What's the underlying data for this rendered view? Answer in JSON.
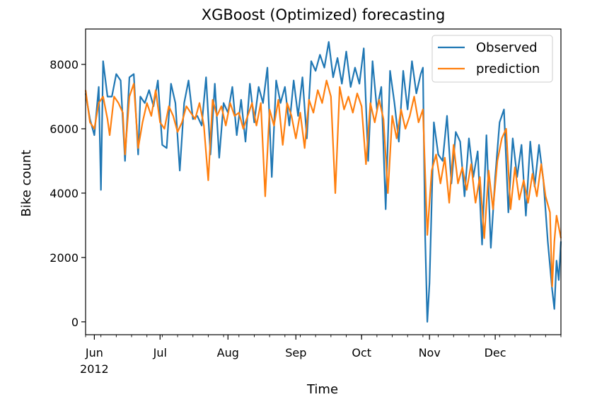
{
  "chart_data": {
    "type": "line",
    "title": "XGBoost (Optimized) forecasting",
    "xlabel": "Time",
    "ylabel": "Bike count",
    "x_start": "2012-05-28",
    "x_end": "2012-12-31",
    "ylim": [
      -400,
      9100
    ],
    "yticks": [
      0,
      2000,
      4000,
      6000,
      8000
    ],
    "xticks": [
      {
        "date": "2012-06-01",
        "label": "Jun",
        "sublabel": "2012"
      },
      {
        "date": "2012-07-01",
        "label": "Jul"
      },
      {
        "date": "2012-08-01",
        "label": "Aug"
      },
      {
        "date": "2012-09-01",
        "label": "Sep"
      },
      {
        "date": "2012-10-01",
        "label": "Oct"
      },
      {
        "date": "2012-11-01",
        "label": "Nov"
      },
      {
        "date": "2012-12-01",
        "label": "Dec"
      }
    ],
    "grid": false,
    "legend_position": "top-right",
    "series": [
      {
        "name": "Observed",
        "color": "#1f77b4",
        "keypoints": [
          [
            "2012-05-28",
            7100
          ],
          [
            "2012-05-30",
            6300
          ],
          [
            "2012-06-01",
            5800
          ],
          [
            "2012-06-03",
            7300
          ],
          [
            "2012-06-04",
            4100
          ],
          [
            "2012-06-05",
            8100
          ],
          [
            "2012-06-07",
            7000
          ],
          [
            "2012-06-09",
            7000
          ],
          [
            "2012-06-11",
            7700
          ],
          [
            "2012-06-13",
            7500
          ],
          [
            "2012-06-15",
            5000
          ],
          [
            "2012-06-17",
            7600
          ],
          [
            "2012-06-19",
            7700
          ],
          [
            "2012-06-21",
            5200
          ],
          [
            "2012-06-22",
            7000
          ],
          [
            "2012-06-24",
            6800
          ],
          [
            "2012-06-26",
            7200
          ],
          [
            "2012-06-28",
            6700
          ],
          [
            "2012-06-30",
            7500
          ],
          [
            "2012-07-02",
            5500
          ],
          [
            "2012-07-04",
            5400
          ],
          [
            "2012-07-06",
            7400
          ],
          [
            "2012-07-08",
            6800
          ],
          [
            "2012-07-10",
            4700
          ],
          [
            "2012-07-12",
            6800
          ],
          [
            "2012-07-14",
            7500
          ],
          [
            "2012-07-16",
            6300
          ],
          [
            "2012-07-18",
            6400
          ],
          [
            "2012-07-20",
            6100
          ],
          [
            "2012-07-22",
            7600
          ],
          [
            "2012-07-24",
            5200
          ],
          [
            "2012-07-26",
            7400
          ],
          [
            "2012-07-28",
            5100
          ],
          [
            "2012-07-30",
            6800
          ],
          [
            "2012-08-01",
            6500
          ],
          [
            "2012-08-03",
            7300
          ],
          [
            "2012-08-05",
            5800
          ],
          [
            "2012-08-07",
            6900
          ],
          [
            "2012-08-09",
            5600
          ],
          [
            "2012-08-11",
            7400
          ],
          [
            "2012-08-13",
            6200
          ],
          [
            "2012-08-15",
            7300
          ],
          [
            "2012-08-17",
            6800
          ],
          [
            "2012-08-19",
            7900
          ],
          [
            "2012-08-21",
            4500
          ],
          [
            "2012-08-23",
            7500
          ],
          [
            "2012-08-25",
            6800
          ],
          [
            "2012-08-27",
            7300
          ],
          [
            "2012-08-29",
            6100
          ],
          [
            "2012-08-31",
            7500
          ],
          [
            "2012-09-02",
            6400
          ],
          [
            "2012-09-04",
            7600
          ],
          [
            "2012-09-06",
            5700
          ],
          [
            "2012-09-08",
            8100
          ],
          [
            "2012-09-10",
            7800
          ],
          [
            "2012-09-12",
            8300
          ],
          [
            "2012-09-14",
            7900
          ],
          [
            "2012-09-16",
            8700
          ],
          [
            "2012-09-18",
            7600
          ],
          [
            "2012-09-20",
            8200
          ],
          [
            "2012-09-22",
            7400
          ],
          [
            "2012-09-24",
            8400
          ],
          [
            "2012-09-26",
            7300
          ],
          [
            "2012-09-28",
            7900
          ],
          [
            "2012-09-30",
            7400
          ],
          [
            "2012-10-02",
            8500
          ],
          [
            "2012-10-04",
            5000
          ],
          [
            "2012-10-06",
            8100
          ],
          [
            "2012-10-08",
            6600
          ],
          [
            "2012-10-10",
            7300
          ],
          [
            "2012-10-12",
            3500
          ],
          [
            "2012-10-14",
            7800
          ],
          [
            "2012-10-16",
            6800
          ],
          [
            "2012-10-18",
            5600
          ],
          [
            "2012-10-20",
            7800
          ],
          [
            "2012-10-22",
            6600
          ],
          [
            "2012-10-24",
            8100
          ],
          [
            "2012-10-26",
            7100
          ],
          [
            "2012-10-28",
            7700
          ],
          [
            "2012-10-29",
            7900
          ],
          [
            "2012-10-30",
            2700
          ],
          [
            "2012-10-31",
            0
          ],
          [
            "2012-11-01",
            1200
          ],
          [
            "2012-11-03",
            6200
          ],
          [
            "2012-11-05",
            5200
          ],
          [
            "2012-11-07",
            5000
          ],
          [
            "2012-11-09",
            6400
          ],
          [
            "2012-11-11",
            4300
          ],
          [
            "2012-11-13",
            5900
          ],
          [
            "2012-11-15",
            5600
          ],
          [
            "2012-11-17",
            3900
          ],
          [
            "2012-11-19",
            5700
          ],
          [
            "2012-11-21",
            4500
          ],
          [
            "2012-11-23",
            5300
          ],
          [
            "2012-11-25",
            2400
          ],
          [
            "2012-11-27",
            5800
          ],
          [
            "2012-11-29",
            2300
          ],
          [
            "2012-12-01",
            4500
          ],
          [
            "2012-12-03",
            6200
          ],
          [
            "2012-12-05",
            6600
          ],
          [
            "2012-12-07",
            3400
          ],
          [
            "2012-12-09",
            5700
          ],
          [
            "2012-12-11",
            4500
          ],
          [
            "2012-12-13",
            5500
          ],
          [
            "2012-12-15",
            3300
          ],
          [
            "2012-12-17",
            5600
          ],
          [
            "2012-12-19",
            4200
          ],
          [
            "2012-12-21",
            5500
          ],
          [
            "2012-12-23",
            4400
          ],
          [
            "2012-12-25",
            2500
          ],
          [
            "2012-12-27",
            1000
          ],
          [
            "2012-12-28",
            400
          ],
          [
            "2012-12-29",
            1900
          ],
          [
            "2012-12-30",
            1300
          ],
          [
            "2012-12-31",
            2500
          ]
        ]
      },
      {
        "name": "prediction",
        "color": "#ff7f0e",
        "keypoints": [
          [
            "2012-05-28",
            7200
          ],
          [
            "2012-05-30",
            6200
          ],
          [
            "2012-06-01",
            6000
          ],
          [
            "2012-06-03",
            6800
          ],
          [
            "2012-06-05",
            7000
          ],
          [
            "2012-06-07",
            6300
          ],
          [
            "2012-06-08",
            5800
          ],
          [
            "2012-06-10",
            7000
          ],
          [
            "2012-06-12",
            6800
          ],
          [
            "2012-06-14",
            6500
          ],
          [
            "2012-06-15",
            5200
          ],
          [
            "2012-06-17",
            7000
          ],
          [
            "2012-06-19",
            7400
          ],
          [
            "2012-06-21",
            5400
          ],
          [
            "2012-06-23",
            6200
          ],
          [
            "2012-06-25",
            6800
          ],
          [
            "2012-06-27",
            6400
          ],
          [
            "2012-06-29",
            7200
          ],
          [
            "2012-07-01",
            6200
          ],
          [
            "2012-07-03",
            6000
          ],
          [
            "2012-07-05",
            6700
          ],
          [
            "2012-07-07",
            6400
          ],
          [
            "2012-07-09",
            5900
          ],
          [
            "2012-07-11",
            6200
          ],
          [
            "2012-07-13",
            6700
          ],
          [
            "2012-07-15",
            6500
          ],
          [
            "2012-07-17",
            6300
          ],
          [
            "2012-07-19",
            6800
          ],
          [
            "2012-07-21",
            6100
          ],
          [
            "2012-07-23",
            4400
          ],
          [
            "2012-07-25",
            6900
          ],
          [
            "2012-07-27",
            6400
          ],
          [
            "2012-07-29",
            6700
          ],
          [
            "2012-07-31",
            6100
          ],
          [
            "2012-08-02",
            6800
          ],
          [
            "2012-08-04",
            6400
          ],
          [
            "2012-08-06",
            6500
          ],
          [
            "2012-08-08",
            6000
          ],
          [
            "2012-08-10",
            6400
          ],
          [
            "2012-08-12",
            6800
          ],
          [
            "2012-08-14",
            6100
          ],
          [
            "2012-08-16",
            6800
          ],
          [
            "2012-08-18",
            3900
          ],
          [
            "2012-08-20",
            6600
          ],
          [
            "2012-08-22",
            6100
          ],
          [
            "2012-08-24",
            6900
          ],
          [
            "2012-08-26",
            5500
          ],
          [
            "2012-08-28",
            6800
          ],
          [
            "2012-08-30",
            6400
          ],
          [
            "2012-09-01",
            5700
          ],
          [
            "2012-09-03",
            6500
          ],
          [
            "2012-09-05",
            5400
          ],
          [
            "2012-09-07",
            6900
          ],
          [
            "2012-09-09",
            6500
          ],
          [
            "2012-09-11",
            7200
          ],
          [
            "2012-09-13",
            6800
          ],
          [
            "2012-09-15",
            7500
          ],
          [
            "2012-09-17",
            7000
          ],
          [
            "2012-09-19",
            4000
          ],
          [
            "2012-09-21",
            7300
          ],
          [
            "2012-09-23",
            6600
          ],
          [
            "2012-09-25",
            7000
          ],
          [
            "2012-09-27",
            6500
          ],
          [
            "2012-09-29",
            7100
          ],
          [
            "2012-10-01",
            6700
          ],
          [
            "2012-10-03",
            4900
          ],
          [
            "2012-10-05",
            6800
          ],
          [
            "2012-10-07",
            6200
          ],
          [
            "2012-10-09",
            6900
          ],
          [
            "2012-10-11",
            6300
          ],
          [
            "2012-10-13",
            4000
          ],
          [
            "2012-10-15",
            6400
          ],
          [
            "2012-10-17",
            5700
          ],
          [
            "2012-10-19",
            6600
          ],
          [
            "2012-10-21",
            6000
          ],
          [
            "2012-10-23",
            6400
          ],
          [
            "2012-10-25",
            7000
          ],
          [
            "2012-10-27",
            6200
          ],
          [
            "2012-10-29",
            6600
          ],
          [
            "2012-10-31",
            2700
          ],
          [
            "2012-11-02",
            4700
          ],
          [
            "2012-11-04",
            5200
          ],
          [
            "2012-11-06",
            4300
          ],
          [
            "2012-11-08",
            5100
          ],
          [
            "2012-11-10",
            3700
          ],
          [
            "2012-11-12",
            5500
          ],
          [
            "2012-11-14",
            4300
          ],
          [
            "2012-11-16",
            4800
          ],
          [
            "2012-11-18",
            4100
          ],
          [
            "2012-11-20",
            4900
          ],
          [
            "2012-11-22",
            3700
          ],
          [
            "2012-11-24",
            4500
          ],
          [
            "2012-11-26",
            2600
          ],
          [
            "2012-11-28",
            4700
          ],
          [
            "2012-11-30",
            3500
          ],
          [
            "2012-12-02",
            5000
          ],
          [
            "2012-12-04",
            5700
          ],
          [
            "2012-12-06",
            6000
          ],
          [
            "2012-12-08",
            3500
          ],
          [
            "2012-12-10",
            4800
          ],
          [
            "2012-12-12",
            3800
          ],
          [
            "2012-12-14",
            4400
          ],
          [
            "2012-12-16",
            3700
          ],
          [
            "2012-12-18",
            4600
          ],
          [
            "2012-12-20",
            3900
          ],
          [
            "2012-12-22",
            4900
          ],
          [
            "2012-12-24",
            3900
          ],
          [
            "2012-12-26",
            3400
          ],
          [
            "2012-12-27",
            1100
          ],
          [
            "2012-12-28",
            2500
          ],
          [
            "2012-12-29",
            3300
          ],
          [
            "2012-12-31",
            2600
          ]
        ]
      }
    ]
  }
}
